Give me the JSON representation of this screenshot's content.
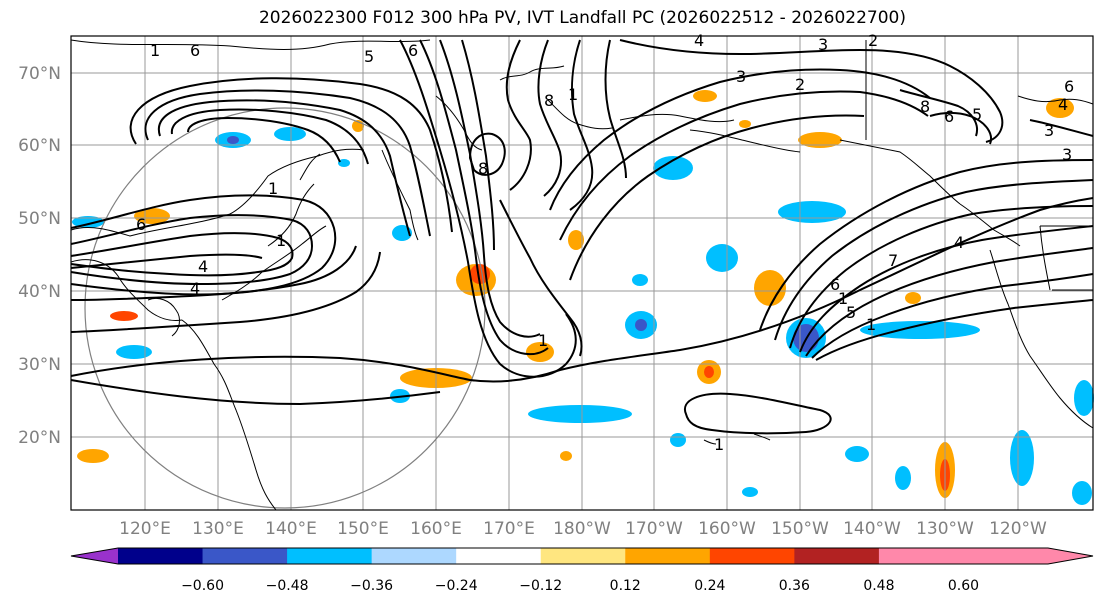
{
  "title": "2026022300 F012 300 hPa PV, IVT Landfall PC (2026022512 - 2026022700)",
  "lat_labels": [
    "70°N",
    "60°N",
    "50°N",
    "40°N",
    "30°N",
    "20°N"
  ],
  "lon_labels": [
    "120°E",
    "130°E",
    "140°E",
    "150°E",
    "160°E",
    "170°E",
    "180°W",
    "170°W",
    "160°W",
    "150°W",
    "140°W",
    "130°W",
    "120°W"
  ],
  "colorbar": {
    "ticks": [
      "−0.60",
      "−0.48",
      "−0.36",
      "−0.24",
      "−0.12",
      "0.12",
      "0.24",
      "0.36",
      "0.48",
      "0.60"
    ],
    "colors": [
      "#9932CC",
      "#00008B",
      "#3A57C8",
      "#00BFFF",
      "#ADD8FF",
      "#FFFFFF",
      "#FFE680",
      "#FFA500",
      "#FF4500",
      "#B22222",
      "#FF88AA"
    ]
  },
  "contour_labels": [
    "1",
    "6",
    "5",
    "6",
    "4",
    "3",
    "2",
    "3",
    "2",
    "8",
    "1",
    "8",
    "6",
    "1",
    "4",
    "4",
    "1",
    "1",
    "8",
    "6",
    "4",
    "7",
    "6",
    "1",
    "5",
    "1",
    "1",
    "6",
    "5",
    "4",
    "3",
    "3"
  ],
  "colors": {
    "frame": "#000000",
    "grid": "#999999",
    "axis_label": "#808080",
    "contour": "#000000",
    "coast": "#000000"
  }
}
